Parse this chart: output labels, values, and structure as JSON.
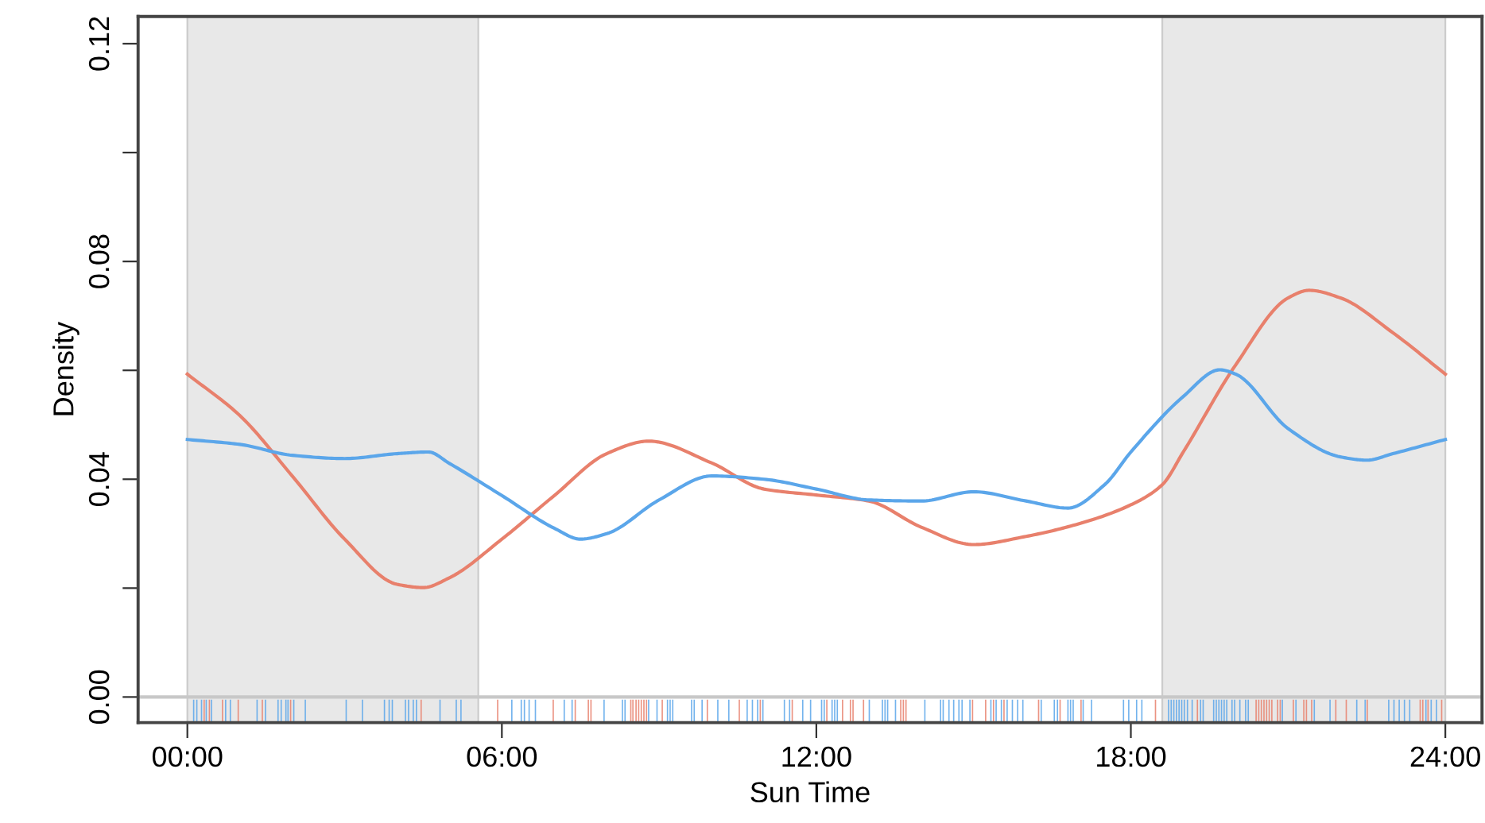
{
  "chart_data": {
    "type": "line",
    "xlabel": "Sun Time",
    "ylabel": "Density",
    "xlim": [
      -0.94,
      24.7
    ],
    "ylim": [
      -0.0047,
      0.125
    ],
    "xticks": [
      {
        "value": 0,
        "label": "00:00"
      },
      {
        "value": 6,
        "label": "06:00"
      },
      {
        "value": 12,
        "label": "12:00"
      },
      {
        "value": 18,
        "label": "18:00"
      },
      {
        "value": 24,
        "label": "24:00"
      }
    ],
    "yticks": [
      {
        "value": 0,
        "label": "0.00"
      },
      {
        "value": 0.02,
        "label": null
      },
      {
        "value": 0.04,
        "label": "0.04"
      },
      {
        "value": 0.06,
        "label": null
      },
      {
        "value": 0.08,
        "label": "0.08"
      },
      {
        "value": 0.1,
        "label": null
      },
      {
        "value": 0.12,
        "label": "0.12"
      }
    ],
    "grid": false,
    "legend": false,
    "bands": [
      {
        "axis": "x",
        "from": 0,
        "to": 5.55,
        "color": "#e8e8e8"
      },
      {
        "axis": "x",
        "from": 18.6,
        "to": 24,
        "color": "#e8e8e8"
      }
    ],
    "ref_lines": [
      {
        "axis": "y",
        "value": 0,
        "color": "#c8c8c8"
      }
    ],
    "series": [
      {
        "color": "#e8806c",
        "x": [
          0,
          1,
          2,
          3,
          4,
          4.5,
          5,
          6,
          7,
          8,
          8.8,
          10,
          11,
          12,
          13,
          14,
          15,
          16,
          17,
          18,
          18.6,
          19,
          20,
          21,
          21.4,
          22,
          23,
          24
        ],
        "values": [
          0.0593,
          0.0517,
          0.0406,
          0.029,
          0.0207,
          0.0201,
          0.0219,
          0.029,
          0.037,
          0.0447,
          0.047,
          0.043,
          0.0382,
          0.0371,
          0.036,
          0.0312,
          0.028,
          0.0295,
          0.0318,
          0.0353,
          0.039,
          0.045,
          0.061,
          0.0733,
          0.0747,
          0.0733,
          0.0669,
          0.0593
        ]
      },
      {
        "color": "#5ba6ea",
        "x": [
          0,
          1,
          2,
          3,
          4,
          4.6,
          5,
          6,
          7,
          7.5,
          8,
          9,
          10,
          11,
          12,
          13,
          14,
          15,
          16,
          16.8,
          17.5,
          18,
          19,
          19.7,
          20,
          21,
          22,
          22.5,
          23,
          24
        ],
        "values": [
          0.0473,
          0.0464,
          0.0444,
          0.0438,
          0.0447,
          0.045,
          0.0429,
          0.037,
          0.031,
          0.029,
          0.03,
          0.0362,
          0.0406,
          0.04,
          0.0382,
          0.0362,
          0.036,
          0.0377,
          0.036,
          0.0347,
          0.039,
          0.045,
          0.0552,
          0.0601,
          0.0593,
          0.0493,
          0.0441,
          0.0435,
          0.0447,
          0.0473
        ]
      },
      {
        "type": "bar",
        "color": "#5ba6ea",
        "x": [
          0.12,
          0.18,
          0.27,
          0.36,
          0.46,
          0.73,
          0.82,
          1.33,
          1.49,
          1.73,
          1.79,
          1.88,
          1.92,
          2.03,
          2.25,
          3.03,
          3.34,
          3.76,
          3.85,
          3.91,
          4.16,
          4.22,
          4.31,
          4.37,
          4.82,
          5.13,
          5.22,
          6.19,
          6.37,
          6.43,
          6.52,
          6.64,
          7.19,
          7.34,
          7.95,
          8.3,
          8.35,
          8.8,
          8.96,
          9.16,
          9.21,
          9.26,
          9.62,
          9.67,
          9.82,
          10.12,
          10.33,
          10.68,
          10.78,
          10.88,
          10.98,
          11.39,
          11.49,
          11.74,
          11.89,
          12.1,
          12.15,
          12.3,
          12.35,
          12.4,
          13.01,
          13.26,
          13.31,
          13.36,
          13.51,
          14.07,
          14.37,
          14.42,
          14.53,
          14.62,
          14.72,
          14.78,
          14.93,
          15.33,
          15.43,
          15.53,
          15.64,
          15.74,
          15.84,
          15.94,
          16.29,
          16.54,
          16.6,
          16.8,
          16.85,
          16.9,
          17.09,
          17.25,
          17.86,
          17.96,
          18.11,
          18.21,
          18.72,
          18.77,
          18.82,
          18.87,
          18.92,
          18.97,
          19.02,
          19.08,
          19.17,
          19.33,
          19.38,
          19.58,
          19.63,
          19.68,
          19.73,
          19.78,
          19.83,
          19.93,
          19.98,
          20.08,
          20.19,
          20.24,
          20.89,
          21.15,
          21.5,
          21.8,
          22.31,
          22.47,
          22.92,
          23.02,
          23.12,
          23.22,
          23.32,
          23.63,
          23.73,
          23.83
        ],
        "values": [
          0.004,
          0.004,
          0.004,
          0.004,
          0.004,
          0.004,
          0.004,
          0.004,
          0.004,
          0.004,
          0.004,
          0.004,
          0.004,
          0.004,
          0.004,
          0.004,
          0.004,
          0.004,
          0.004,
          0.004,
          0.004,
          0.004,
          0.004,
          0.004,
          0.004,
          0.004,
          0.004,
          0.004,
          0.004,
          0.004,
          0.004,
          0.004,
          0.004,
          0.004,
          0.004,
          0.004,
          0.004,
          0.004,
          0.004,
          0.004,
          0.004,
          0.004,
          0.004,
          0.004,
          0.004,
          0.004,
          0.004,
          0.004,
          0.004,
          0.004,
          0.004,
          0.004,
          0.004,
          0.004,
          0.004,
          0.004,
          0.004,
          0.004,
          0.004,
          0.004,
          0.004,
          0.004,
          0.004,
          0.004,
          0.004,
          0.004,
          0.004,
          0.004,
          0.004,
          0.004,
          0.004,
          0.004,
          0.004,
          0.004,
          0.004,
          0.004,
          0.004,
          0.004,
          0.004,
          0.004,
          0.004,
          0.004,
          0.004,
          0.004,
          0.004,
          0.004,
          0.004,
          0.004,
          0.004,
          0.004,
          0.004,
          0.004,
          0.004,
          0.004,
          0.004,
          0.004,
          0.004,
          0.004,
          0.004,
          0.004,
          0.004,
          0.004,
          0.004,
          0.004,
          0.004,
          0.004,
          0.004,
          0.004,
          0.004,
          0.004,
          0.004,
          0.004,
          0.004,
          0.004,
          0.004,
          0.004,
          0.004,
          0.004,
          0.004,
          0.004,
          0.004,
          0.004,
          0.004,
          0.004,
          0.004,
          0.004,
          0.004,
          0.004
        ],
        "base": [
          -0.0045,
          -0.0045,
          -0.0045,
          -0.0045,
          -0.0045,
          -0.0045,
          -0.0045,
          -0.0045,
          -0.0045,
          -0.0045,
          -0.0045,
          -0.0045,
          -0.0045,
          -0.0045,
          -0.0045,
          -0.0045,
          -0.0045,
          -0.0045,
          -0.0045,
          -0.0045,
          -0.0045,
          -0.0045,
          -0.0045,
          -0.0045,
          -0.0045,
          -0.0045,
          -0.0045,
          -0.0045,
          -0.0045,
          -0.0045,
          -0.0045,
          -0.0045,
          -0.0045,
          -0.0045,
          -0.0045,
          -0.0045,
          -0.0045,
          -0.0045,
          -0.0045,
          -0.0045,
          -0.0045,
          -0.0045,
          -0.0045,
          -0.0045,
          -0.0045,
          -0.0045,
          -0.0045,
          -0.0045,
          -0.0045,
          -0.0045,
          -0.0045,
          -0.0045,
          -0.0045,
          -0.0045,
          -0.0045,
          -0.0045,
          -0.0045,
          -0.0045,
          -0.0045,
          -0.0045,
          -0.0045,
          -0.0045,
          -0.0045,
          -0.0045,
          -0.0045,
          -0.0045,
          -0.0045,
          -0.0045,
          -0.0045,
          -0.0045,
          -0.0045,
          -0.0045,
          -0.0045,
          -0.0045,
          -0.0045,
          -0.0045,
          -0.0045,
          -0.0045,
          -0.0045,
          -0.0045,
          -0.0045,
          -0.0045,
          -0.0045,
          -0.0045,
          -0.0045,
          -0.0045,
          -0.0045,
          -0.0045,
          -0.0045,
          -0.0045,
          -0.0045,
          -0.0045,
          -0.0045,
          -0.0045,
          -0.0045,
          -0.0045,
          -0.0045,
          -0.0045,
          -0.0045,
          -0.0045,
          -0.0045,
          -0.0045,
          -0.0045,
          -0.0045,
          -0.0045,
          -0.0045,
          -0.0045,
          -0.0045,
          -0.0045,
          -0.0045,
          -0.0045,
          -0.0045,
          -0.0045,
          -0.0045,
          -0.0045,
          -0.0045,
          -0.0045,
          -0.0045,
          -0.0045,
          -0.0045,
          -0.0045,
          -0.0045,
          -0.0045,
          -0.0045,
          -0.0045,
          -0.0045,
          -0.0045,
          -0.0045
        ]
      },
      {
        "type": "bar",
        "color": "#e8806c",
        "x": [
          0.32,
          0.42,
          0.67,
          0.97,
          1.43,
          1.97,
          4.46,
          5.92,
          6.98,
          7.4,
          7.65,
          7.7,
          8.46,
          8.5,
          8.56,
          8.61,
          8.66,
          8.71,
          8.76,
          9.06,
          9.92,
          10.53,
          10.93,
          11.54,
          12.2,
          12.5,
          12.65,
          12.7,
          12.9,
          13.61,
          13.66,
          13.71,
          14.98,
          15.23,
          15.38,
          15.58,
          16.24,
          16.65,
          17.05,
          18.47,
          19.27,
          20.39,
          20.44,
          20.49,
          20.54,
          20.59,
          20.64,
          20.69,
          20.8,
          20.85,
          21.1,
          21.3,
          21.35,
          21.45,
          21.91,
          22.11,
          22.51,
          23.52,
          23.57,
          23.67,
          23.93
        ],
        "values": [
          0.004,
          0.004,
          0.004,
          0.004,
          0.004,
          0.004,
          0.004,
          0.004,
          0.004,
          0.004,
          0.004,
          0.004,
          0.004,
          0.004,
          0.004,
          0.004,
          0.004,
          0.004,
          0.004,
          0.004,
          0.004,
          0.004,
          0.004,
          0.004,
          0.004,
          0.004,
          0.004,
          0.004,
          0.004,
          0.004,
          0.004,
          0.004,
          0.004,
          0.004,
          0.004,
          0.004,
          0.004,
          0.004,
          0.004,
          0.004,
          0.004,
          0.004,
          0.004,
          0.004,
          0.004,
          0.004,
          0.004,
          0.004,
          0.004,
          0.004,
          0.004,
          0.004,
          0.004,
          0.004,
          0.004,
          0.004,
          0.004,
          0.004,
          0.004,
          0.004,
          0.004
        ],
        "base": [
          -0.0045,
          -0.0045,
          -0.0045,
          -0.0045,
          -0.0045,
          -0.0045,
          -0.0045,
          -0.0045,
          -0.0045,
          -0.0045,
          -0.0045,
          -0.0045,
          -0.0045,
          -0.0045,
          -0.0045,
          -0.0045,
          -0.0045,
          -0.0045,
          -0.0045,
          -0.0045,
          -0.0045,
          -0.0045,
          -0.0045,
          -0.0045,
          -0.0045,
          -0.0045,
          -0.0045,
          -0.0045,
          -0.0045,
          -0.0045,
          -0.0045,
          -0.0045,
          -0.0045,
          -0.0045,
          -0.0045,
          -0.0045,
          -0.0045,
          -0.0045,
          -0.0045,
          -0.0045,
          -0.0045,
          -0.0045,
          -0.0045,
          -0.0045,
          -0.0045,
          -0.0045,
          -0.0045,
          -0.0045,
          -0.0045,
          -0.0045,
          -0.0045,
          -0.0045,
          -0.0045,
          -0.0045,
          -0.0045,
          -0.0045,
          -0.0045,
          -0.0045,
          -0.0045,
          -0.0045,
          -0.0045
        ]
      }
    ]
  }
}
